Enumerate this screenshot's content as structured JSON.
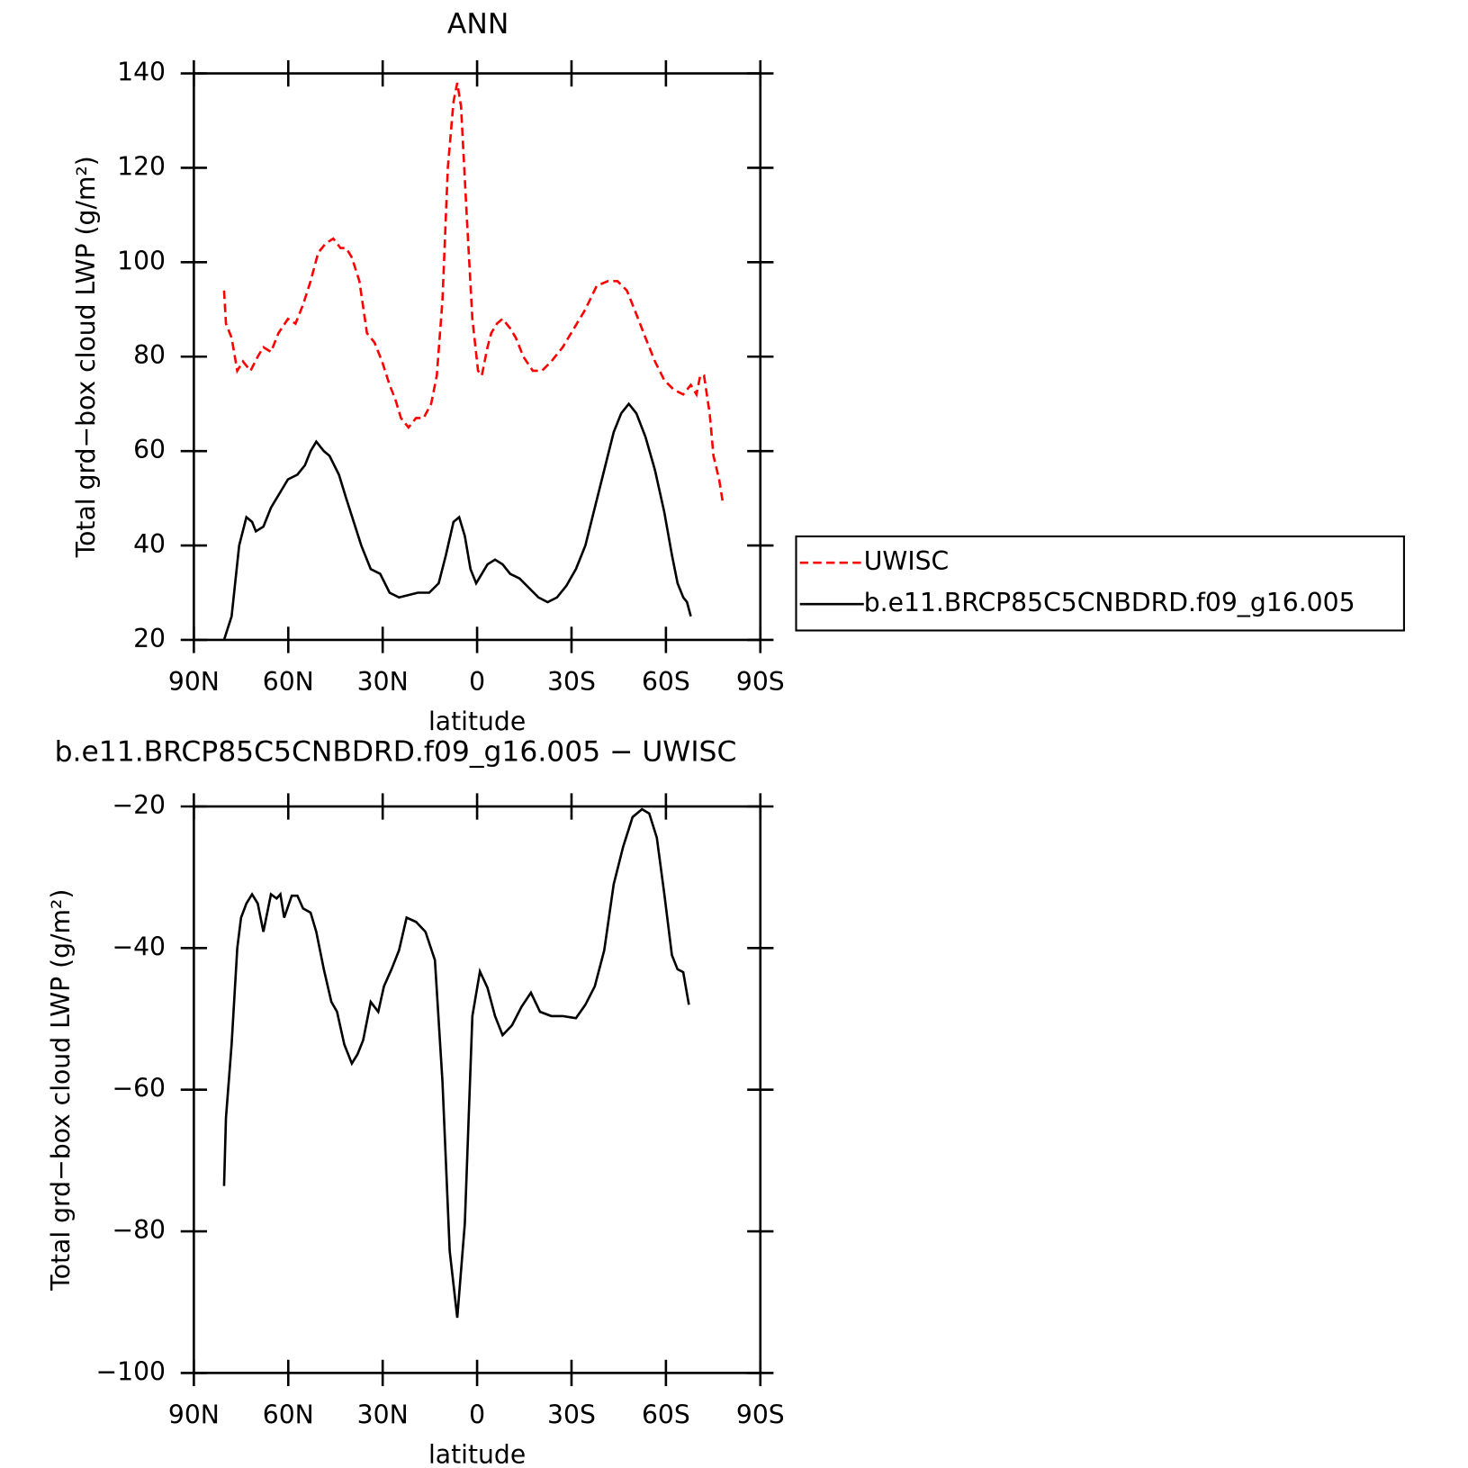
{
  "chart_data": [
    {
      "type": "line",
      "title": "ANN",
      "xlabel": "latitude",
      "ylabel": "Total grd−box cloud LWP (g/m²)",
      "xlim": [
        90,
        -90
      ],
      "ylim": [
        20,
        140
      ],
      "xticks": [
        {
          "value": 90,
          "label": "90N"
        },
        {
          "value": 60,
          "label": "60N"
        },
        {
          "value": 30,
          "label": "30N"
        },
        0,
        {
          "value": -30,
          "label": "30S"
        },
        {
          "value": -60,
          "label": "60S"
        },
        {
          "value": -90,
          "label": "90S"
        }
      ],
      "yticks": [
        20,
        40,
        60,
        80,
        100,
        120,
        140
      ],
      "legend": "right",
      "series": [
        {
          "name": "UWISC",
          "color": "#ff0000",
          "dash": true,
          "x": [
            80.4,
            79.8,
            78,
            76.2,
            74.4,
            72,
            69.7,
            67.9,
            65.5,
            63.1,
            60.1,
            57.7,
            55.3,
            52.9,
            50.5,
            48.1,
            45.7,
            43.4,
            41.6,
            39.8,
            37.4,
            35.0,
            32.6,
            30.2,
            27.8,
            26,
            24.2,
            21.8,
            19.4,
            17,
            14.6,
            12.8,
            11.0,
            9.3,
            7.5,
            6.3,
            5.1,
            3.3,
            1.5,
            -0.3,
            -1.5,
            -3.3,
            -4.5,
            -6.3,
            -8.1,
            -10.5,
            -12.3,
            -14.7,
            -17.7,
            -20.6,
            -23.6,
            -27.2,
            -30.8,
            -34.4,
            -38.0,
            -41.6,
            -44.6,
            -47.6,
            -50.6,
            -53.5,
            -56.5,
            -59.5,
            -62.5,
            -65.5,
            -67.9,
            -69.7,
            -70.9,
            -72.1,
            -73.9,
            -75.1,
            -76.9,
            -78.1
          ],
          "values": [
            94,
            87,
            84,
            77,
            79,
            77,
            80,
            82,
            81,
            85,
            88,
            87,
            91,
            96,
            102,
            104,
            105,
            103,
            103,
            101,
            96,
            85,
            83,
            79,
            74,
            71,
            67,
            65,
            67,
            67,
            70,
            76,
            92,
            120,
            134,
            138,
            133,
            110,
            88,
            77,
            76,
            82,
            85,
            87,
            88,
            86,
            84,
            80,
            77,
            77,
            79,
            82,
            86,
            90,
            95,
            96,
            96,
            94,
            89,
            84,
            79,
            75,
            73,
            72,
            74,
            72,
            76,
            76,
            68,
            59,
            54,
            49
          ]
        },
        {
          "name": "b.e11.BRCP85C5CNBDRD.f09_g16.005",
          "color": "#000000",
          "dash": false,
          "x": [
            80.4,
            78,
            75.6,
            73.3,
            71.5,
            70.3,
            67.9,
            65.5,
            63.7,
            61.9,
            60.1,
            57.1,
            54.7,
            52.9,
            51.1,
            48.7,
            46.9,
            43.9,
            41.6,
            39.2,
            36.8,
            33.8,
            30.8,
            27.8,
            24.8,
            21.8,
            18.8,
            15.2,
            12.2,
            9.9,
            7.5,
            5.7,
            3.9,
            2.1,
            0.3,
            -1.5,
            -3.3,
            -5.7,
            -8.1,
            -10.5,
            -13.5,
            -16.5,
            -19.5,
            -22.4,
            -25.4,
            -28.4,
            -31.4,
            -34.4,
            -37.4,
            -40.4,
            -43.4,
            -45.8,
            -48.2,
            -50.6,
            -53.5,
            -56.5,
            -59.5,
            -61.9,
            -63.7,
            -65.5,
            -66.7,
            -67.9
          ],
          "values": [
            20,
            25,
            40,
            46,
            45,
            43,
            44,
            48,
            50,
            52,
            54,
            55,
            57,
            60,
            62,
            60,
            59,
            55,
            50,
            45,
            40,
            35,
            34,
            30,
            29,
            29.5,
            30,
            30,
            32,
            38,
            45,
            46,
            42,
            35,
            32,
            34,
            36,
            37,
            36,
            34,
            33,
            31,
            29,
            28,
            29,
            31.5,
            35,
            40,
            48,
            56,
            64,
            68,
            70,
            68,
            63,
            56,
            47,
            38,
            32,
            29,
            28,
            25
          ]
        }
      ]
    },
    {
      "type": "line",
      "title": "b.e11.BRCP85C5CNBDRD.f09_g16.005 − UWISC",
      "xlabel": "latitude",
      "ylabel": "Total grd−box cloud LWP (g/m²)",
      "xlim": [
        90,
        -90
      ],
      "ylim": [
        -100,
        -20
      ],
      "xticks": [
        {
          "value": 90,
          "label": "90N"
        },
        {
          "value": 60,
          "label": "60N"
        },
        {
          "value": 30,
          "label": "30N"
        },
        0,
        {
          "value": -30,
          "label": "30S"
        },
        {
          "value": -60,
          "label": "60S"
        },
        {
          "value": -90,
          "label": "90S"
        }
      ],
      "yticks": [
        {
          "value": -100,
          "label": "−100"
        },
        {
          "value": -80,
          "label": "−80"
        },
        {
          "value": -60,
          "label": "−60"
        },
        {
          "value": -40,
          "label": "−40"
        },
        {
          "value": -20,
          "label": "−20"
        }
      ],
      "series": [
        {
          "color": "#000000",
          "dash": false,
          "x": [
            80.4,
            79.8,
            78,
            76.2,
            75,
            73.3,
            71.5,
            69.7,
            67.9,
            65.5,
            63.7,
            62.5,
            61.3,
            58.9,
            57.1,
            55.3,
            52.9,
            51.1,
            48.7,
            46.3,
            44.5,
            42.2,
            39.8,
            38.0,
            36.2,
            33.8,
            31.4,
            29.6,
            27.2,
            24.8,
            22.4,
            19.4,
            16.4,
            13.4,
            11.0,
            8.7,
            6.3,
            3.9,
            1.5,
            -0.9,
            -3.3,
            -5.7,
            -8.1,
            -11.1,
            -14.1,
            -17.1,
            -20.0,
            -23.6,
            -27.2,
            -31.4,
            -34.4,
            -37.4,
            -40.4,
            -43.4,
            -46.4,
            -49.4,
            -52.4,
            -54.7,
            -57.1,
            -59.5,
            -61.9,
            -63.7,
            -65.5,
            -67.3
          ],
          "values": [
            -73.6,
            -64,
            -53.6,
            -40,
            -35.7,
            -33.7,
            -32.4,
            -33.7,
            -37.7,
            -32.4,
            -33,
            -32.4,
            -35.7,
            -32.6,
            -32.6,
            -34.4,
            -35,
            -37.7,
            -43,
            -47.6,
            -49,
            -53.6,
            -56.3,
            -55,
            -53,
            -47.6,
            -49,
            -45.4,
            -43,
            -40.3,
            -35.7,
            -36.3,
            -37.7,
            -41.7,
            -58.9,
            -82.8,
            -92.2,
            -78.9,
            -49.6,
            -43.3,
            -45.6,
            -49.6,
            -52.3,
            -50.9,
            -48.3,
            -46.3,
            -49,
            -49.6,
            -49.6,
            -49.9,
            -48,
            -45.4,
            -40.3,
            -31,
            -25.7,
            -21.5,
            -20.4,
            -21,
            -24.4,
            -32.4,
            -41,
            -43,
            -43.4,
            -48
          ]
        }
      ]
    }
  ]
}
